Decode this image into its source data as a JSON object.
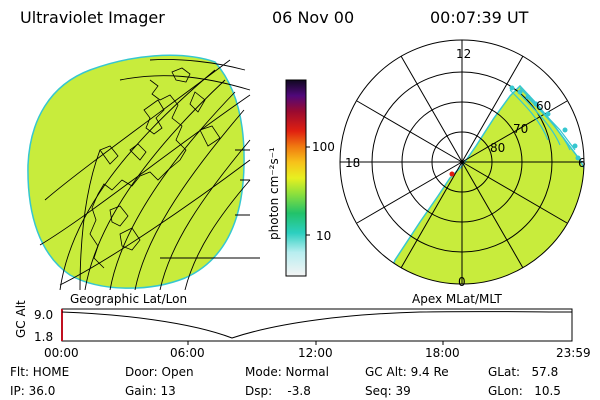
{
  "header": {
    "title": "Ultraviolet Imager",
    "date": "06 Nov 00",
    "time": "00:07:39 UT"
  },
  "colorbar": {
    "unit_label": "photon cm⁻²s⁻¹",
    "ticks": [
      "100",
      "10"
    ]
  },
  "geo_map": {
    "label": "Geographic Lat/Lon"
  },
  "polar_plot": {
    "label": "Apex MLat/MLT",
    "mlt_labels": [
      "12",
      "18",
      "6",
      "0"
    ],
    "lat_labels": [
      "60",
      "70",
      "80"
    ]
  },
  "altitude_plot": {
    "axis_label": "GC Alt",
    "y_ticks": [
      "9.0",
      "1.8"
    ],
    "time_ticks": [
      "00:00",
      "06:00",
      "12:00",
      "18:00",
      "23:59"
    ]
  },
  "status": {
    "flt": "Flt: HOME",
    "ip": "IP: 36.0",
    "door": "Door: Open",
    "gain": "Gain: 13",
    "mode": "Mode: Normal",
    "dsp": "Dsp:    -3.8",
    "gc_alt": "GC Alt: 9.4 Re",
    "seq": "Seq: 39",
    "glat": "GLat:   57.8",
    "glon": "GLon:   10.5"
  }
}
